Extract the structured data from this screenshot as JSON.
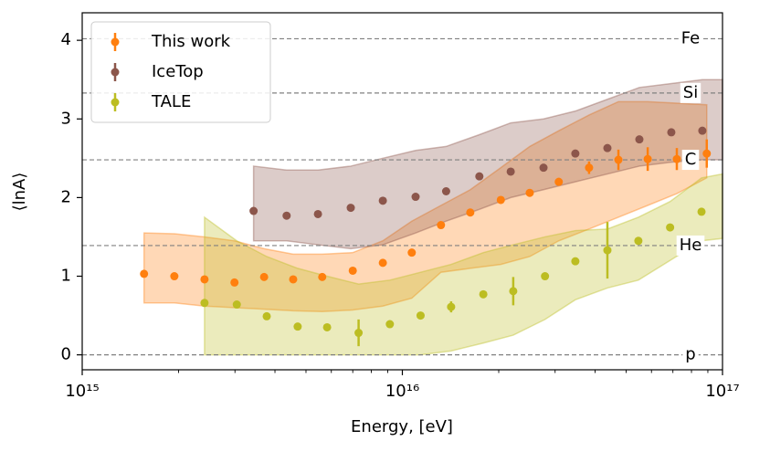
{
  "chart_data": {
    "type": "scatter",
    "xlabel": "Energy, [eV]",
    "ylabel": "⟨lnA⟩",
    "xlim": [
      1000000000000000.0,
      1e+17
    ],
    "xscale": "log",
    "xticks": [
      {
        "value": 1000000000000000.0,
        "label": "10¹⁵"
      },
      {
        "value": 1e+16,
        "label": "10¹⁶"
      },
      {
        "value": 1e+17,
        "label": "10¹⁷"
      }
    ],
    "xminorticks": [
      2000000000000000.0,
      3000000000000000.0,
      4000000000000000.0,
      5000000000000000.0,
      6000000000000000.0,
      7000000000000000.0,
      8000000000000000.0,
      9000000000000000.0,
      2e+16,
      3e+16,
      4e+16,
      5e+16,
      6e+16,
      7e+16,
      8e+16,
      9e+16
    ],
    "ylim": [
      -0.19,
      4.35
    ],
    "yticks": [
      0,
      1,
      2,
      3,
      4
    ],
    "legend": "upper left",
    "reference_lines": [
      {
        "name": "Fe",
        "value": 4.02
      },
      {
        "name": "Si",
        "value": 3.33
      },
      {
        "name": "C",
        "value": 2.48
      },
      {
        "name": "He",
        "value": 1.39
      },
      {
        "name": "p",
        "value": 0
      }
    ],
    "bands": [
      {
        "color": "#ff7f0e",
        "x": [
          1560000000000000.0,
          1940000000000000.0,
          2410000000000000.0,
          2990000000000000.0,
          3700000000000000.0,
          4560000000000000.0,
          5620000000000000.0,
          7000000000000000.0,
          8690000000000000.0,
          1.07e+16,
          1.32e+16,
          1.63e+16,
          2.03e+16,
          2.5e+16,
          3.08e+16,
          3.83e+16,
          4.73e+16,
          5.84e+16,
          7.2e+16,
          8.93e+16
        ],
        "upper": [
          1.55,
          1.54,
          1.5,
          1.45,
          1.35,
          1.28,
          1.28,
          1.3,
          1.45,
          1.7,
          1.9,
          2.1,
          2.38,
          2.65,
          2.85,
          3.05,
          3.22,
          3.22,
          3.2,
          3.18
        ],
        "lower": [
          0.66,
          0.66,
          0.62,
          0.6,
          0.58,
          0.56,
          0.55,
          0.57,
          0.62,
          0.72,
          1.05,
          1.1,
          1.15,
          1.25,
          1.45,
          1.6,
          1.75,
          1.9,
          2.05,
          2.25
        ]
      },
      {
        "color": "#8c564b",
        "x": [
          3430000000000000.0,
          4350000000000000.0,
          5450000000000000.0,
          6900000000000000.0,
          8690000000000000.0,
          1.1e+16,
          1.37e+16,
          1.74e+16,
          2.18e+16,
          2.76e+16,
          3.47e+16,
          4.37e+16,
          5.5e+16,
          6.92e+16,
          8.65e+16,
          1e+17
        ],
        "upper": [
          2.4,
          2.35,
          2.35,
          2.4,
          2.5,
          2.6,
          2.65,
          2.8,
          2.95,
          3.0,
          3.1,
          3.25,
          3.4,
          3.45,
          3.5,
          3.5
        ],
        "lower": [
          1.45,
          1.45,
          1.4,
          1.35,
          1.4,
          1.55,
          1.7,
          1.85,
          2.0,
          2.1,
          2.2,
          2.3,
          2.4,
          2.45,
          2.48,
          2.48
        ]
      },
      {
        "color": "#bcbd22",
        "x": [
          2410000000000000.0,
          3040000000000000.0,
          3770000000000000.0,
          4710000000000000.0,
          5820000000000000.0,
          7300000000000000.0,
          9140000000000000.0,
          1.14e+16,
          1.42e+16,
          1.79e+16,
          2.22e+16,
          2.79e+16,
          3.47e+16,
          4.37e+16,
          5.46e+16,
          6.86e+16,
          8.6e+16,
          1e+17
        ],
        "upper": [
          1.75,
          1.45,
          1.25,
          1.1,
          1.0,
          0.9,
          0.95,
          1.05,
          1.15,
          1.3,
          1.4,
          1.5,
          1.58,
          1.6,
          1.75,
          1.95,
          2.25,
          2.3
        ],
        "lower": [
          0,
          0,
          0,
          0,
          0,
          0,
          0,
          0,
          0.05,
          0.15,
          0.25,
          0.45,
          0.7,
          0.85,
          0.95,
          1.2,
          1.45,
          1.48
        ]
      }
    ],
    "series": [
      {
        "name": "This work",
        "color": "#ff7f0e",
        "x": [
          1560000000000000.0,
          1940000000000000.0,
          2410000000000000.0,
          2990000000000000.0,
          3700000000000000.0,
          4560000000000000.0,
          5620000000000000.0,
          7000000000000000.0,
          8690000000000000.0,
          1.07e+16,
          1.32e+16,
          1.63e+16,
          2.03e+16,
          2.5e+16,
          3.08e+16,
          3.83e+16,
          4.73e+16,
          5.84e+16,
          7.2e+16,
          8.93e+16
        ],
        "values": [
          1.03,
          1.0,
          0.96,
          0.92,
          0.99,
          0.96,
          0.99,
          1.07,
          1.17,
          1.3,
          1.65,
          1.81,
          1.97,
          2.06,
          2.2,
          2.38,
          2.48,
          2.49,
          2.49,
          2.56
        ],
        "errors": [
          0.02,
          0.02,
          0.02,
          0.02,
          0.02,
          0.02,
          0.02,
          0.02,
          0.02,
          0.03,
          0.03,
          0.03,
          0.03,
          0.04,
          0.05,
          0.08,
          0.13,
          0.15,
          0.14,
          0.18
        ]
      },
      {
        "name": "IceTop",
        "color": "#8c564b",
        "x": [
          3430000000000000.0,
          4350000000000000.0,
          5450000000000000.0,
          6900000000000000.0,
          8690000000000000.0,
          1.1e+16,
          1.37e+16,
          1.74e+16,
          2.18e+16,
          2.76e+16,
          3.47e+16,
          4.37e+16,
          5.5e+16,
          6.92e+16,
          8.65e+16
        ],
        "values": [
          1.83,
          1.77,
          1.79,
          1.87,
          1.96,
          2.01,
          2.08,
          2.27,
          2.33,
          2.38,
          2.56,
          2.63,
          2.74,
          2.83,
          2.85
        ],
        "errors": [
          0.01,
          0.01,
          0.01,
          0.01,
          0.01,
          0.01,
          0.01,
          0.01,
          0.01,
          0.01,
          0.01,
          0.01,
          0.01,
          0.01,
          0.01
        ]
      },
      {
        "name": "TALE",
        "color": "#bcbd22",
        "x": [
          2410000000000000.0,
          3040000000000000.0,
          3770000000000000.0,
          4710000000000000.0,
          5820000000000000.0,
          7300000000000000.0,
          9140000000000000.0,
          1.14e+16,
          1.42e+16,
          1.79e+16,
          2.22e+16,
          2.79e+16,
          3.47e+16,
          4.37e+16,
          5.46e+16,
          6.86e+16,
          8.6e+16
        ],
        "values": [
          0.66,
          0.64,
          0.49,
          0.36,
          0.35,
          0.28,
          0.39,
          0.5,
          0.61,
          0.77,
          0.81,
          1.0,
          1.19,
          1.33,
          1.45,
          1.62,
          1.82
        ],
        "errors": [
          0.05,
          0.02,
          0.02,
          0.02,
          0.02,
          0.17,
          0.02,
          0.02,
          0.07,
          0.03,
          0.18,
          0.03,
          0.03,
          0.36,
          0.03,
          0.03,
          0.03
        ]
      }
    ]
  }
}
